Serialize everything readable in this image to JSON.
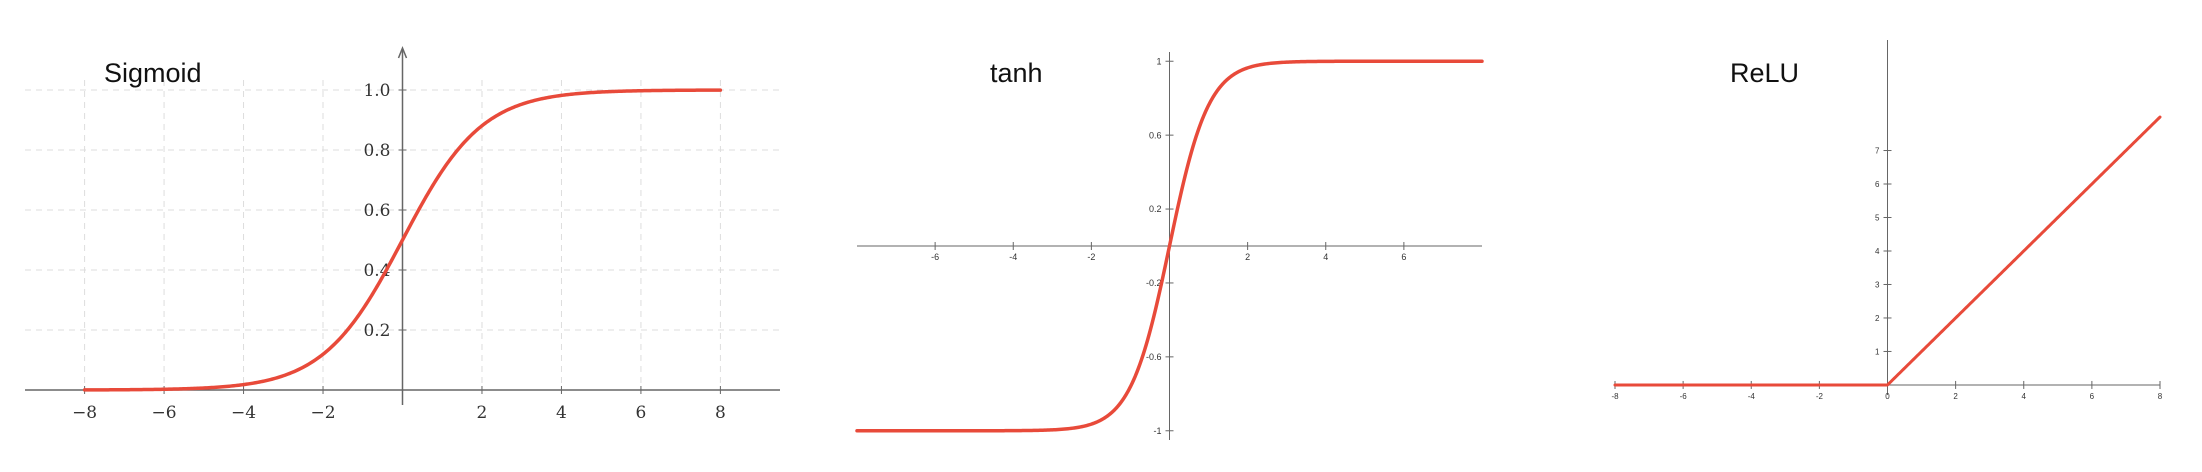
{
  "colors": {
    "curve": "#e84a3a",
    "axis": "#666666",
    "grid": "#dddddd",
    "tick_text": "#333333"
  },
  "chart_data": [
    {
      "type": "line",
      "title": "Sigmoid",
      "function": "sigmoid",
      "xlim": [
        -9.5,
        9.5
      ],
      "ylim": [
        -0.05,
        1.1
      ],
      "grid": true,
      "xticks": [
        -8,
        -6,
        -4,
        -2,
        2,
        4,
        6,
        8
      ],
      "xtick_labels": [
        "−8",
        "−6",
        "−4",
        "−2",
        "2",
        "4",
        "6",
        "8"
      ],
      "yticks": [
        0.2,
        0.4,
        0.6,
        0.8,
        1.0
      ],
      "ytick_labels": [
        "0.2",
        "0.4",
        "0.6",
        "0.8",
        "1.0"
      ],
      "series": [
        {
          "x": [
            -8,
            -6,
            -4,
            -3,
            -2,
            -1,
            0,
            1,
            2,
            3,
            4,
            6,
            8
          ],
          "y": [
            0.0003,
            0.0025,
            0.018,
            0.047,
            0.119,
            0.269,
            0.5,
            0.731,
            0.881,
            0.953,
            0.982,
            0.9975,
            0.9997
          ]
        }
      ]
    },
    {
      "type": "line",
      "title": "tanh",
      "function": "tanh",
      "xlim": [
        -8,
        8
      ],
      "ylim": [
        -1.05,
        1.05
      ],
      "grid": false,
      "xticks": [
        -6,
        -4,
        -2,
        2,
        4,
        6
      ],
      "xtick_labels": [
        "-6",
        "-4",
        "-2",
        "2",
        "4",
        "6"
      ],
      "yticks": [
        1,
        0.6,
        0.2,
        -0.2,
        -0.6,
        -1
      ],
      "ytick_labels": [
        "1",
        "0.6",
        "0.2",
        "-0.2",
        "-0.6",
        "-1"
      ],
      "series": [
        {
          "x": [
            -8,
            -4,
            -3,
            -2,
            -1,
            -0.5,
            0,
            0.5,
            1,
            2,
            3,
            4,
            8
          ],
          "y": [
            -1,
            -0.999,
            -0.995,
            -0.964,
            -0.762,
            -0.462,
            0,
            0.462,
            0.762,
            0.964,
            0.995,
            0.999,
            1
          ]
        }
      ]
    },
    {
      "type": "line",
      "title": "ReLU",
      "function": "relu",
      "xlim": [
        -8,
        8
      ],
      "ylim": [
        -0.3,
        10.3
      ],
      "grid": false,
      "xticks": [
        -8,
        -6,
        -4,
        -2,
        0,
        2,
        4,
        6,
        8
      ],
      "xtick_labels": [
        "-8",
        "-6",
        "-4",
        "-2",
        "0",
        "2",
        "4",
        "6",
        "8"
      ],
      "yticks": [
        1,
        2,
        3,
        4,
        5,
        6,
        7
      ],
      "ytick_labels": [
        "1",
        "2",
        "3",
        "4",
        "5",
        "6",
        "7"
      ],
      "series": [
        {
          "x": [
            -8,
            0,
            8
          ],
          "y": [
            0,
            0,
            8
          ]
        }
      ]
    }
  ]
}
